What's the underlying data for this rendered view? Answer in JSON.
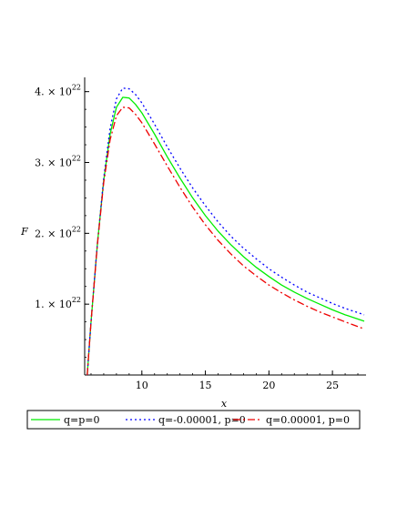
{
  "chart_data": {
    "type": "line",
    "title": "",
    "xlabel": "x",
    "ylabel": "F",
    "xlim": [
      5.5,
      27.5
    ],
    "ylim": [
      0,
      4.15
    ],
    "y_unit_label": "10^22",
    "x_ticks": [
      {
        "value": 10,
        "label": "10"
      },
      {
        "value": 15,
        "label": "15"
      },
      {
        "value": 20,
        "label": "20"
      },
      {
        "value": 25,
        "label": "25"
      }
    ],
    "y_ticks": [
      {
        "value": 1,
        "label": "1. × 10",
        "exp": "22"
      },
      {
        "value": 2,
        "label": "2. × 10",
        "exp": "22"
      },
      {
        "value": 3,
        "label": "3. × 10",
        "exp": "22"
      },
      {
        "value": 4,
        "label": "4. × 10",
        "exp": "22"
      }
    ],
    "grid": false,
    "legend_position": "bottom",
    "series": [
      {
        "name": "q=p=0",
        "color": "#00ee00",
        "dash": "solid",
        "x": [
          5.7,
          6.0,
          6.5,
          7.0,
          7.5,
          8.0,
          8.5,
          9.0,
          9.5,
          10.0,
          11.0,
          12.0,
          13.0,
          14.0,
          15.0,
          16.0,
          17.0,
          18.0,
          19.0,
          20.0,
          21.0,
          22.0,
          23.0,
          24.0,
          25.0,
          26.0,
          27.5
        ],
        "y": [
          0.0,
          0.75,
          1.85,
          2.75,
          3.4,
          3.78,
          3.92,
          3.91,
          3.82,
          3.7,
          3.4,
          3.08,
          2.78,
          2.5,
          2.25,
          2.03,
          1.84,
          1.67,
          1.52,
          1.39,
          1.27,
          1.17,
          1.08,
          1.0,
          0.92,
          0.85,
          0.76
        ]
      },
      {
        "name": "q=-0.00001, p=0",
        "color": "#0000ff",
        "dash": "dot",
        "x": [
          5.7,
          6.0,
          6.5,
          7.0,
          7.5,
          8.0,
          8.5,
          9.0,
          9.5,
          10.0,
          11.0,
          12.0,
          13.0,
          14.0,
          15.0,
          16.0,
          17.0,
          18.0,
          19.0,
          20.0,
          21.0,
          22.0,
          23.0,
          24.0,
          25.0,
          26.0,
          27.5
        ],
        "y": [
          0.0,
          0.75,
          1.86,
          2.78,
          3.48,
          3.9,
          4.05,
          4.04,
          3.96,
          3.84,
          3.54,
          3.22,
          2.92,
          2.64,
          2.39,
          2.16,
          1.96,
          1.79,
          1.64,
          1.5,
          1.38,
          1.27,
          1.17,
          1.09,
          1.01,
          0.94,
          0.85
        ]
      },
      {
        "name": "q=0.00001, p=0",
        "color": "#ee0000",
        "dash": "dashdot",
        "x": [
          5.7,
          6.0,
          6.5,
          7.0,
          7.5,
          8.0,
          8.5,
          9.0,
          9.5,
          10.0,
          11.0,
          12.0,
          13.0,
          14.0,
          15.0,
          16.0,
          17.0,
          18.0,
          19.0,
          20.0,
          21.0,
          22.0,
          23.0,
          24.0,
          25.0,
          26.0,
          27.5
        ],
        "y": [
          0.0,
          0.75,
          1.84,
          2.72,
          3.32,
          3.66,
          3.78,
          3.77,
          3.68,
          3.56,
          3.26,
          2.95,
          2.65,
          2.37,
          2.12,
          1.9,
          1.71,
          1.54,
          1.4,
          1.27,
          1.16,
          1.06,
          0.97,
          0.89,
          0.82,
          0.75,
          0.65
        ]
      }
    ]
  }
}
